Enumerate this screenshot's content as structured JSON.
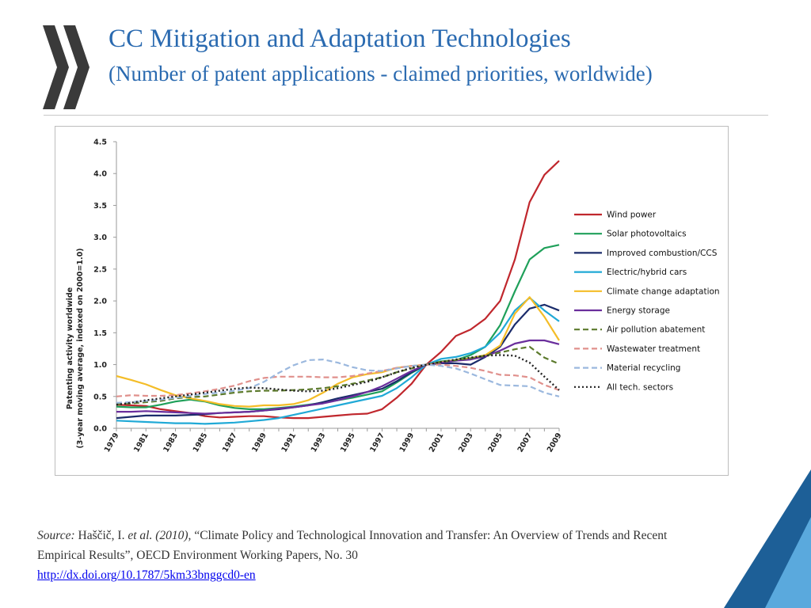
{
  "page": {
    "title": "CC Mitigation and Adaptation Technologies",
    "subtitle": "(Number of patent applications - claimed priorities, worldwide)"
  },
  "colors": {
    "title": "#2a6ab0",
    "logo": "#3a3a3a",
    "corner_dark": "#1d5f97",
    "corner_light": "#5aa9dd",
    "link": "#0000ee"
  },
  "source": {
    "label": "Source:",
    "authors": "Haščič, I.",
    "etal": "et al. (2010),",
    "title_text": "“Climate Policy and Technological Innovation and Transfer: An Overview of Trends and Recent Empirical Results”, OECD Environment Working Papers, No. 30",
    "url": "http://dx.doi.org/10.1787/5km33bnggcd0-en"
  },
  "chart_data": {
    "type": "line",
    "title": "",
    "xlabel": "",
    "ylabel_line1": "Patenting activity worldwide",
    "ylabel_line2": "(3-year moving average, indexed on 2000=1.0)",
    "ylim": [
      0,
      4.5
    ],
    "xlim": [
      1979,
      2009
    ],
    "y_ticks": [
      0,
      0.5,
      1,
      1.5,
      2,
      2.5,
      3,
      3.5,
      4,
      4.5
    ],
    "y_tick_labels": [
      "0.0",
      "0.5",
      "1.0",
      "1.5",
      "2.0",
      "2.5",
      "3.0",
      "3.5",
      "4.0",
      "4.5"
    ],
    "x_tick_labels": [
      "1979",
      "1981",
      "1983",
      "1985",
      "1987",
      "1989",
      "1991",
      "1993",
      "1995",
      "1997",
      "1999",
      "2001",
      "2003",
      "2005",
      "2007",
      "2009"
    ],
    "grid": false,
    "legend_position": "right",
    "x": [
      1979,
      1980,
      1981,
      1982,
      1983,
      1984,
      1985,
      1986,
      1987,
      1988,
      1989,
      1990,
      1991,
      1992,
      1993,
      1994,
      1995,
      1996,
      1997,
      1998,
      1999,
      2000,
      2001,
      2002,
      2003,
      2004,
      2005,
      2006,
      2007,
      2008,
      2009
    ],
    "series": [
      {
        "name": "Wind power",
        "color": "#c0272d",
        "dash": "solid",
        "values": [
          0.37,
          0.36,
          0.35,
          0.3,
          0.27,
          0.24,
          0.19,
          0.17,
          0.18,
          0.19,
          0.19,
          0.17,
          0.16,
          0.16,
          0.18,
          0.2,
          0.22,
          0.23,
          0.3,
          0.48,
          0.7,
          1.0,
          1.2,
          1.45,
          1.55,
          1.72,
          2.0,
          2.65,
          3.55,
          3.98,
          4.2
        ]
      },
      {
        "name": "Solar photovoltaics",
        "color": "#1fa05a",
        "dash": "solid",
        "values": [
          0.34,
          0.33,
          0.33,
          0.37,
          0.42,
          0.45,
          0.42,
          0.36,
          0.32,
          0.3,
          0.3,
          0.32,
          0.34,
          0.37,
          0.4,
          0.44,
          0.48,
          0.53,
          0.58,
          0.72,
          0.87,
          1.0,
          1.05,
          1.07,
          1.15,
          1.28,
          1.62,
          2.15,
          2.65,
          2.83,
          2.88
        ]
      },
      {
        "name": "Improved combustion/CCS",
        "color": "#1b2c6b",
        "dash": "solid",
        "values": [
          0.16,
          0.18,
          0.2,
          0.2,
          0.2,
          0.21,
          0.22,
          0.24,
          0.25,
          0.26,
          0.28,
          0.3,
          0.33,
          0.36,
          0.41,
          0.47,
          0.52,
          0.57,
          0.62,
          0.74,
          0.88,
          1.0,
          1.02,
          1.02,
          1.0,
          1.12,
          1.28,
          1.63,
          1.88,
          1.94,
          1.85
        ]
      },
      {
        "name": "Electric/hybrid cars",
        "color": "#20a9d6",
        "dash": "solid",
        "values": [
          0.12,
          0.11,
          0.1,
          0.09,
          0.08,
          0.08,
          0.07,
          0.08,
          0.09,
          0.11,
          0.13,
          0.16,
          0.21,
          0.26,
          0.31,
          0.36,
          0.41,
          0.46,
          0.51,
          0.63,
          0.8,
          1.0,
          1.09,
          1.12,
          1.18,
          1.28,
          1.5,
          1.85,
          2.05,
          1.85,
          1.68
        ]
      },
      {
        "name": "Climate change adaptation",
        "color": "#f4bd28",
        "dash": "solid",
        "values": [
          0.82,
          0.76,
          0.69,
          0.6,
          0.52,
          0.47,
          0.43,
          0.38,
          0.35,
          0.34,
          0.36,
          0.36,
          0.38,
          0.44,
          0.56,
          0.7,
          0.8,
          0.85,
          0.88,
          0.95,
          0.98,
          1.0,
          1.04,
          1.07,
          1.1,
          1.15,
          1.3,
          1.8,
          2.06,
          1.75,
          1.38
        ]
      },
      {
        "name": "Energy storage",
        "color": "#6a2e9c",
        "dash": "solid",
        "values": [
          0.26,
          0.26,
          0.27,
          0.26,
          0.25,
          0.24,
          0.23,
          0.24,
          0.25,
          0.26,
          0.28,
          0.31,
          0.33,
          0.36,
          0.39,
          0.44,
          0.5,
          0.57,
          0.66,
          0.78,
          0.9,
          1.0,
          1.03,
          1.06,
          1.08,
          1.13,
          1.22,
          1.33,
          1.38,
          1.38,
          1.32
        ]
      },
      {
        "name": "Air pollution abatement",
        "color": "#5c7a2c",
        "dash": "long",
        "values": [
          0.38,
          0.39,
          0.41,
          0.43,
          0.47,
          0.49,
          0.5,
          0.53,
          0.56,
          0.58,
          0.59,
          0.59,
          0.6,
          0.61,
          0.63,
          0.66,
          0.7,
          0.75,
          0.8,
          0.88,
          0.94,
          1.0,
          1.04,
          1.07,
          1.1,
          1.14,
          1.19,
          1.24,
          1.28,
          1.11,
          1.01
        ]
      },
      {
        "name": "Wastewater treatment",
        "color": "#e0908c",
        "dash": "long",
        "values": [
          0.5,
          0.52,
          0.51,
          0.51,
          0.52,
          0.55,
          0.58,
          0.62,
          0.67,
          0.74,
          0.79,
          0.81,
          0.81,
          0.81,
          0.8,
          0.8,
          0.82,
          0.86,
          0.9,
          0.95,
          0.98,
          1.0,
          1.0,
          0.98,
          0.95,
          0.9,
          0.84,
          0.83,
          0.8,
          0.68,
          0.6
        ]
      },
      {
        "name": "Material recycling",
        "color": "#9bb8de",
        "dash": "long",
        "values": [
          0.4,
          0.41,
          0.43,
          0.45,
          0.48,
          0.51,
          0.54,
          0.56,
          0.59,
          0.63,
          0.73,
          0.87,
          0.99,
          1.07,
          1.08,
          1.03,
          0.96,
          0.91,
          0.9,
          0.94,
          0.98,
          1.0,
          0.98,
          0.94,
          0.86,
          0.77,
          0.68,
          0.67,
          0.66,
          0.56,
          0.5
        ]
      },
      {
        "name": "All tech. sectors",
        "color": "#222222",
        "dash": "dot",
        "values": [
          0.37,
          0.4,
          0.44,
          0.47,
          0.5,
          0.53,
          0.56,
          0.59,
          0.62,
          0.64,
          0.63,
          0.61,
          0.59,
          0.58,
          0.59,
          0.63,
          0.68,
          0.73,
          0.8,
          0.88,
          0.95,
          1.0,
          1.04,
          1.08,
          1.11,
          1.14,
          1.15,
          1.14,
          1.03,
          0.81,
          0.6
        ]
      }
    ]
  }
}
